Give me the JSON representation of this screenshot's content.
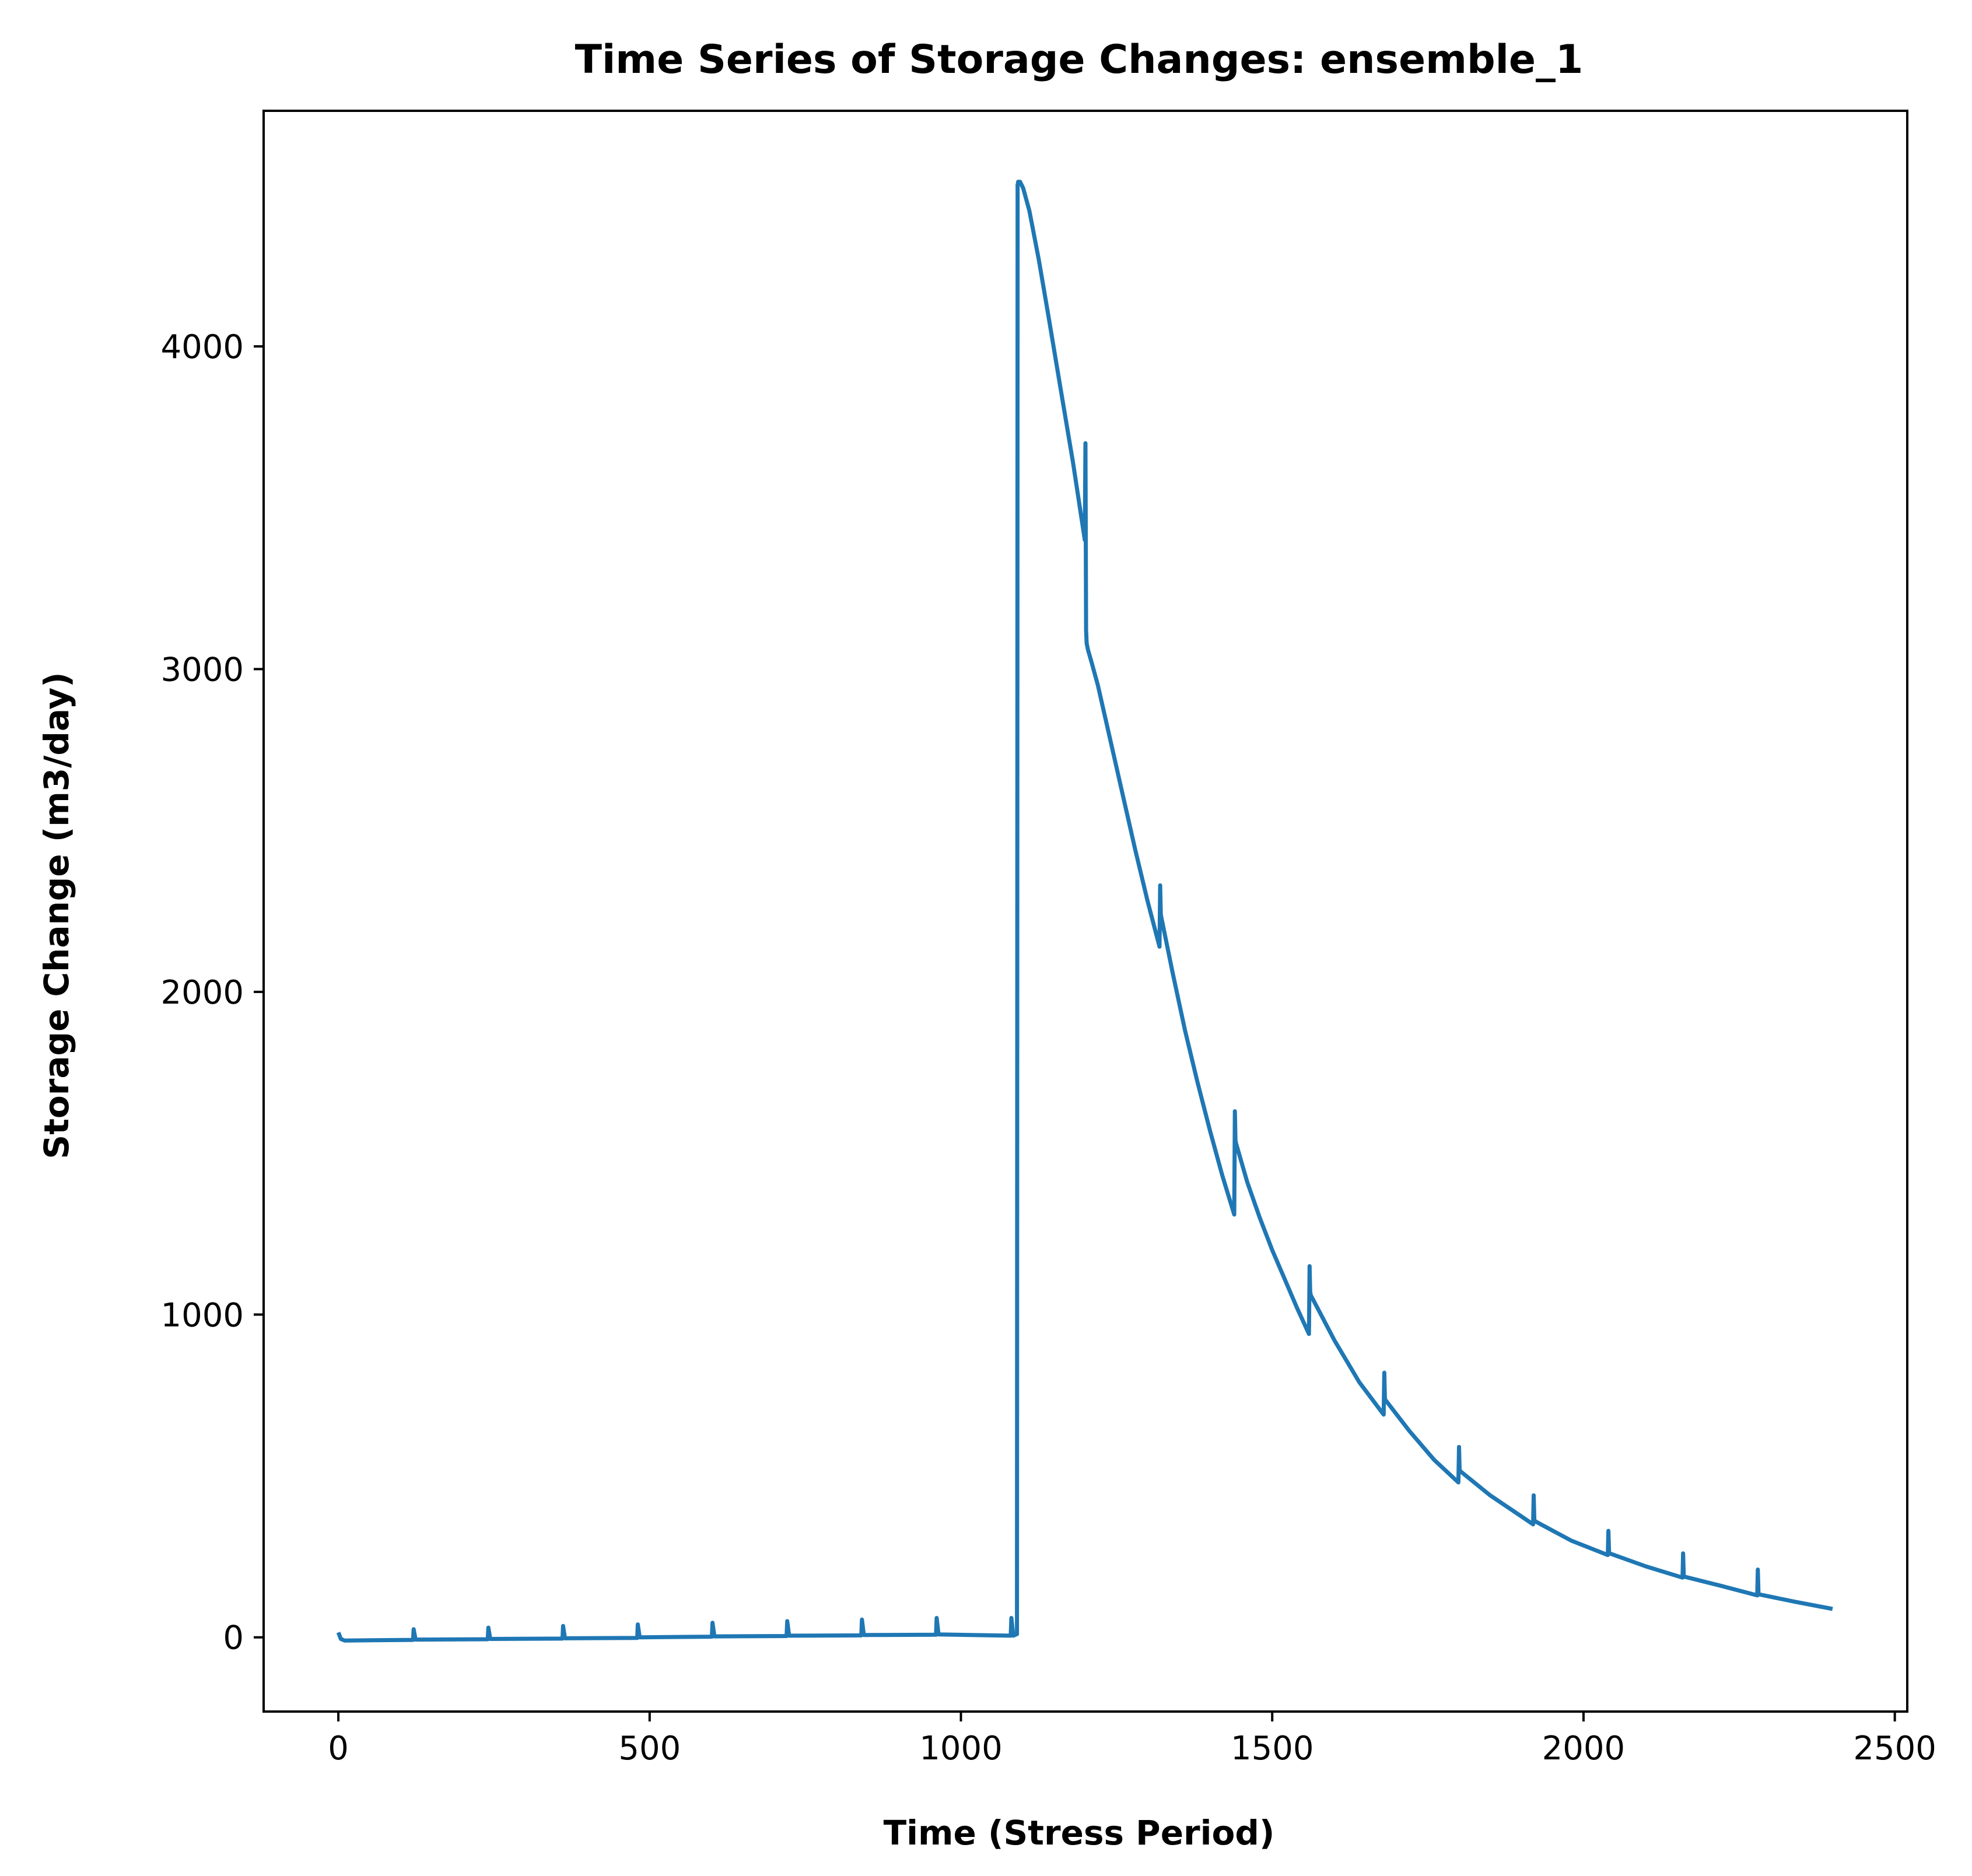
{
  "chart_data": {
    "type": "line",
    "title": "Time Series of Storage Changes: ensemble_1",
    "xlabel": "Time (Stress Period)",
    "ylabel": "Storage Change (m3/day)",
    "xlim": [
      -120,
      2520
    ],
    "ylim": [
      -230,
      4730
    ],
    "xticks": [
      0,
      500,
      1000,
      1500,
      2000,
      2500
    ],
    "yticks": [
      0,
      1000,
      2000,
      3000,
      4000
    ],
    "grid": false,
    "legend": "none",
    "series": [
      {
        "color": "#1f77b4",
        "x": [
          0,
          4,
          10,
          120,
          121,
          124,
          240,
          241,
          244,
          360,
          361,
          364,
          480,
          481,
          484,
          600,
          601,
          604,
          720,
          721,
          724,
          840,
          841,
          844,
          960,
          961,
          964,
          1080,
          1081,
          1084,
          1090,
          1091,
          1092,
          1095,
          1100,
          1110,
          1125,
          1140,
          1160,
          1180,
          1199,
          1200,
          1201,
          1202,
          1204,
          1210,
          1220,
          1240,
          1260,
          1280,
          1300,
          1319,
          1320,
          1321,
          1322,
          1340,
          1360,
          1380,
          1400,
          1420,
          1439,
          1440,
          1441,
          1442,
          1460,
          1480,
          1500,
          1520,
          1540,
          1559,
          1560,
          1561,
          1562,
          1600,
          1640,
          1679,
          1680,
          1681,
          1682,
          1720,
          1760,
          1799,
          1800,
          1801,
          1802,
          1850,
          1900,
          1919,
          1920,
          1921,
          1922,
          1980,
          2039,
          2040,
          2041,
          2042,
          2100,
          2159,
          2160,
          2161,
          2162,
          2220,
          2279,
          2280,
          2281,
          2282,
          2340,
          2400
        ],
        "y": [
          15,
          -5,
          -10,
          -8,
          25,
          -7,
          -6,
          30,
          -5,
          -4,
          35,
          -3,
          -2,
          40,
          0,
          2,
          45,
          3,
          4,
          50,
          5,
          6,
          55,
          7,
          8,
          60,
          9,
          5,
          60,
          5,
          10,
          4500,
          4510,
          4510,
          4490,
          4420,
          4270,
          4100,
          3870,
          3640,
          3400,
          3700,
          3120,
          3080,
          3060,
          3020,
          2950,
          2780,
          2610,
          2440,
          2280,
          2140,
          2330,
          2240,
          2230,
          2060,
          1880,
          1720,
          1570,
          1430,
          1310,
          1630,
          1540,
          1530,
          1410,
          1300,
          1200,
          1110,
          1020,
          940,
          1150,
          1070,
          1060,
          920,
          790,
          690,
          820,
          740,
          735,
          640,
          550,
          480,
          590,
          520,
          515,
          440,
          375,
          350,
          440,
          365,
          360,
          300,
          255,
          330,
          265,
          260,
          220,
          185,
          260,
          190,
          188,
          160,
          130,
          210,
          135,
          133,
          110,
          88
        ]
      }
    ]
  }
}
